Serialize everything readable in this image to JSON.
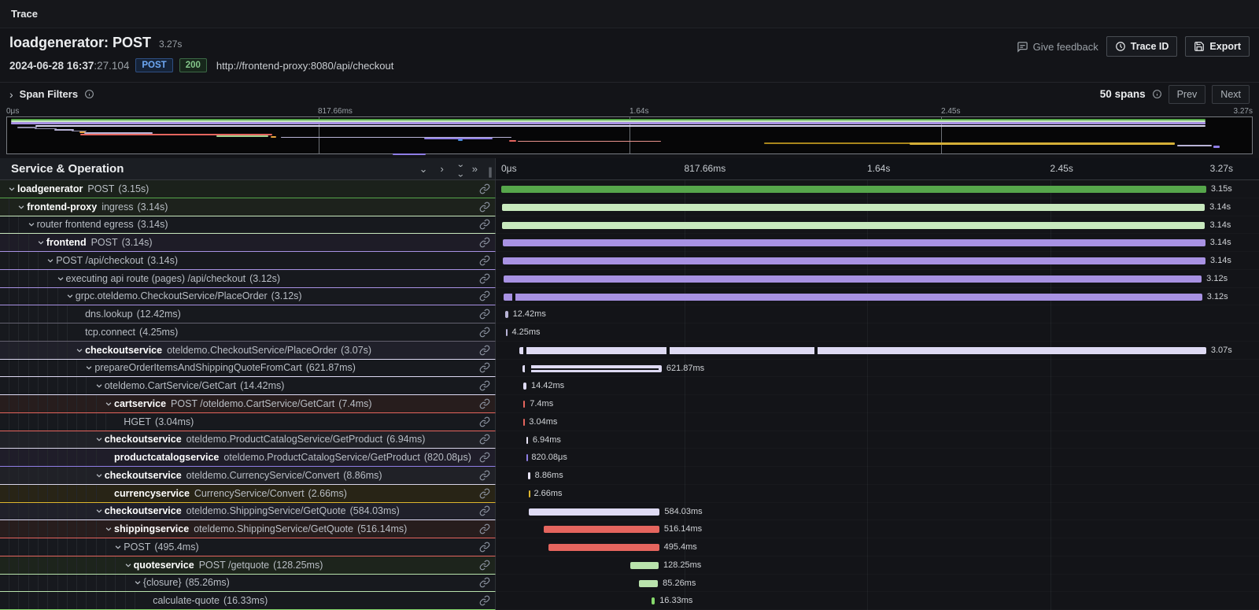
{
  "page": {
    "title": "Trace"
  },
  "trace_header": {
    "title": "loadgenerator: POST",
    "total_duration": "3.27s",
    "datetime": "2024-06-28 16:37",
    "datetime_frac": ":27.104",
    "method_badge": "POST",
    "status_badge": "200",
    "url": "http://frontend-proxy:8080/api/checkout",
    "feedback_label": "Give feedback",
    "trace_id_label": "Trace ID",
    "export_label": "Export"
  },
  "filters": {
    "label": "Span Filters",
    "span_count": "50 spans",
    "prev_label": "Prev",
    "next_label": "Next"
  },
  "timeline": {
    "header_title": "Service & Operation",
    "total_s": 3.27,
    "ticks": [
      "0μs",
      "817.66ms",
      "1.64s",
      "2.45s",
      "3.27s"
    ]
  },
  "colors": {
    "green": "#56A64B",
    "pale_green": "#C8E9BE",
    "purple": "#A892E3",
    "lavender": "#DEDAF3",
    "white_lavender": "#E9E5F7",
    "red": "#E5655E",
    "catalog_purple": "#8F7EE6",
    "gold": "#DDB52E",
    "quote_green": "#B9E3AC",
    "bright_green": "#86D96C",
    "dim_gray": "#62606E"
  },
  "minimap": {
    "grid_pcts": [
      25,
      50,
      75
    ],
    "bars": [
      {
        "l": 0.3,
        "t": 2,
        "w": 96,
        "h": 2,
        "c": "#56A64B"
      },
      {
        "l": 0.3,
        "t": 4,
        "w": 96,
        "h": 2,
        "c": "#C8E9BE"
      },
      {
        "l": 0.3,
        "t": 6,
        "w": 96,
        "h": 3,
        "c": "#A892E3"
      },
      {
        "l": 2.3,
        "t": 10,
        "w": 94,
        "h": 2,
        "c": "#DEDAF3"
      },
      {
        "l": 0.8,
        "t": 12,
        "w": 1.6,
        "h": 1.5,
        "c": "#8d89a6"
      },
      {
        "l": 2.2,
        "t": 13.5,
        "w": 1.8,
        "h": 1.5,
        "c": "#8d89a6"
      },
      {
        "l": 3.8,
        "t": 15,
        "w": 1.6,
        "h": 1.5,
        "c": "#b8b3d6"
      },
      {
        "l": 5.2,
        "t": 16.5,
        "w": 1.2,
        "h": 1.5,
        "c": "#8d89a6"
      },
      {
        "l": 5.8,
        "t": 18,
        "w": 0.5,
        "h": 2,
        "c": "#e8a33d"
      },
      {
        "l": 6.2,
        "t": 19,
        "w": 5.5,
        "h": 1.5,
        "c": "#b8b3d6"
      },
      {
        "l": 5.9,
        "t": 21,
        "w": 15.4,
        "h": 2,
        "c": "#E5655E"
      },
      {
        "l": 16.8,
        "t": 22.5,
        "w": 4.2,
        "h": 2,
        "c": "#9fd18f"
      },
      {
        "l": 21.2,
        "t": 23.5,
        "w": 0.4,
        "h": 2,
        "c": "#e8a33d"
      },
      {
        "l": 22,
        "t": 24.5,
        "w": 18.5,
        "h": 1.5,
        "c": "#b8b3d6"
      },
      {
        "l": 33.5,
        "t": 25.5,
        "w": 5.5,
        "h": 2,
        "c": "#8F7EE6"
      },
      {
        "l": 36.2,
        "t": 27.5,
        "w": 0.4,
        "h": 2,
        "c": "#4a90e2"
      },
      {
        "l": 40.3,
        "t": 28.5,
        "w": 0.6,
        "h": 2,
        "c": "#E5655E"
      },
      {
        "l": 41,
        "t": 29.5,
        "w": 11.5,
        "h": 1.5,
        "c": "#e8928c"
      },
      {
        "l": 60.8,
        "t": 31.5,
        "w": 12,
        "h": 2.5,
        "c": "#a8851c"
      },
      {
        "l": 72.5,
        "t": 31.5,
        "w": 21.3,
        "h": 3,
        "c": "#D4AF37"
      },
      {
        "l": 31,
        "t": 45.5,
        "w": 2.6,
        "h": 2,
        "c": "#8F7EE6"
      },
      {
        "l": 94,
        "t": 35,
        "w": 2.8,
        "h": 1.5,
        "c": "#b8b3d6"
      },
      {
        "l": 96.9,
        "t": 36,
        "w": 0.5,
        "h": 2.5,
        "c": "#8F7EE6"
      }
    ]
  },
  "rows": [
    {
      "indent": 0,
      "chevron": true,
      "service": "loadgenerator",
      "operation": "POST",
      "duration": "(3.15s)",
      "color": "#56A64B",
      "bar_color": "#56A64B",
      "tint": "#1b211b",
      "bar": {
        "start": 0.0,
        "dur": 3.15,
        "label": "3.15s"
      }
    },
    {
      "indent": 1,
      "chevron": true,
      "service": "frontend-proxy",
      "operation": "ingress",
      "duration": "(3.14s)",
      "color": "#C8E9BE",
      "bar_color": "#C8E9BE",
      "tint": "#1d221c",
      "bar": {
        "start": 0.004,
        "dur": 3.14,
        "label": "3.14s"
      }
    },
    {
      "indent": 2,
      "chevron": true,
      "service": null,
      "operation": "router frontend egress",
      "duration": "(3.14s)",
      "color": "#C8E9BE",
      "bar_color": "#C8E9BE",
      "tint": "#17191e",
      "bar": {
        "start": 0.005,
        "dur": 3.14,
        "label": "3.14s"
      }
    },
    {
      "indent": 3,
      "chevron": true,
      "service": "frontend",
      "operation": "POST",
      "duration": "(3.14s)",
      "color": "#A892E3",
      "bar_color": "#A892E3",
      "tint": "#1e1c27",
      "bar": {
        "start": 0.006,
        "dur": 3.14,
        "label": "3.14s"
      }
    },
    {
      "indent": 4,
      "chevron": true,
      "service": null,
      "operation": "POST /api/checkout",
      "duration": "(3.14s)",
      "color": "#A892E3",
      "bar_color": "#A892E3",
      "tint": "#17191e",
      "bar": {
        "start": 0.007,
        "dur": 3.14,
        "label": "3.14s"
      }
    },
    {
      "indent": 5,
      "chevron": true,
      "service": null,
      "operation": "executing api route (pages) /api/checkout",
      "duration": "(3.12s)",
      "color": "#A892E3",
      "bar_color": "#A892E3",
      "tint": "#17191e",
      "bar": {
        "start": 0.01,
        "dur": 3.12,
        "label": "3.12s"
      }
    },
    {
      "indent": 6,
      "chevron": true,
      "service": null,
      "operation": "grpc.oteldemo.CheckoutService/PlaceOrder",
      "duration": "(3.12s)",
      "color": "#A892E3",
      "bar_color": "#A892E3",
      "tint": "#17191e",
      "bar": {
        "start": 0.012,
        "dur": 3.12,
        "label": "3.12s",
        "marks": [
          0.05
        ]
      }
    },
    {
      "indent": 7,
      "chevron": false,
      "service": null,
      "operation": "dns.lookup",
      "duration": "(12.42ms)",
      "color": "#62606E",
      "bar_color": "#B8B3D6",
      "tint": "#17191e",
      "bar": {
        "start": 0.018,
        "dur": 0.01242,
        "label": "12.42ms"
      }
    },
    {
      "indent": 7,
      "chevron": false,
      "service": null,
      "operation": "tcp.connect",
      "duration": "(4.25ms)",
      "color": "#62606E",
      "bar_color": "#B8B3D6",
      "tint": "#17191e",
      "bar": {
        "start": 0.022,
        "dur": 0.00425,
        "label": "4.25ms"
      }
    },
    {
      "indent": 7,
      "chevron": true,
      "service": "checkoutservice",
      "operation": "oteldemo.CheckoutService/PlaceOrder",
      "duration": "(3.07s)",
      "color": "#DEDAF3",
      "bar_color": "#DEDAF3",
      "tint": "#20202a",
      "bar": {
        "start": 0.08,
        "dur": 3.07,
        "label": "3.07s",
        "marks": [
          0.1,
          0.74,
          1.4
        ]
      }
    },
    {
      "indent": 8,
      "chevron": true,
      "service": null,
      "operation": "prepareOrderItemsAndShippingQuoteFromCart",
      "duration": "(621.87ms)",
      "color": "#DEDAF3",
      "bar_color": "#DEDAF3",
      "tint": "#17191e",
      "bar": {
        "start": 0.095,
        "dur": 0.62187,
        "label": "621.87ms",
        "inner": true,
        "marks": [
          0.105,
          0.118
        ]
      }
    },
    {
      "indent": 9,
      "chevron": true,
      "service": null,
      "operation": "oteldemo.CartService/GetCart",
      "duration": "(14.42ms)",
      "color": "#DEDAF3",
      "bar_color": "#DEDAF3",
      "tint": "#17191e",
      "bar": {
        "start": 0.098,
        "dur": 0.01442,
        "label": "14.42ms"
      }
    },
    {
      "indent": 10,
      "chevron": true,
      "service": "cartservice",
      "operation": "POST /oteldemo.CartService/GetCart",
      "duration": "(7.4ms)",
      "color": "#E5655E",
      "bar_color": "#E5655E",
      "tint": "#271d1d",
      "bar": {
        "start": 0.099,
        "dur": 0.0074,
        "label": "7.4ms"
      }
    },
    {
      "indent": 11,
      "chevron": false,
      "service": null,
      "operation": "HGET",
      "duration": "(3.04ms)",
      "color": "#E5655E",
      "bar_color": "#E5655E",
      "tint": "#17191e",
      "bar": {
        "start": 0.1,
        "dur": 0.00304,
        "label": "3.04ms"
      }
    },
    {
      "indent": 9,
      "chevron": true,
      "service": "checkoutservice",
      "operation": "oteldemo.ProductCatalogService/GetProduct",
      "duration": "(6.94ms)",
      "color": "#D8D4E8",
      "bar_color": "#E9E5F7",
      "tint": "#202127",
      "bar": {
        "start": 0.112,
        "dur": 0.00694,
        "label": "6.94ms"
      }
    },
    {
      "indent": 10,
      "chevron": false,
      "service": "productcatalogservice",
      "operation": "oteldemo.ProductCatalogService/GetProduct",
      "duration": "(820.08μs)",
      "color": "#8F7EE6",
      "bar_color": "#8F7EE6",
      "tint": "#1f1d29",
      "bar": {
        "start": 0.113,
        "dur": 0.00082,
        "label": "820.08μs"
      }
    },
    {
      "indent": 9,
      "chevron": true,
      "service": "checkoutservice",
      "operation": "oteldemo.CurrencyService/Convert",
      "duration": "(8.86ms)",
      "color": "#D8D4E8",
      "bar_color": "#E9E5F7",
      "tint": "#202127",
      "bar": {
        "start": 0.12,
        "dur": 0.00886,
        "label": "8.86ms"
      }
    },
    {
      "indent": 10,
      "chevron": false,
      "service": "currencyservice",
      "operation": "CurrencyService/Convert",
      "duration": "(2.66ms)",
      "color": "#DDB52E",
      "bar_color": "#DDB52E",
      "tint": "#282416",
      "bar": {
        "start": 0.122,
        "dur": 0.00266,
        "label": "2.66ms"
      }
    },
    {
      "indent": 9,
      "chevron": true,
      "service": "checkoutservice",
      "operation": "oteldemo.ShippingService/GetQuote",
      "duration": "(584.03ms)",
      "color": "#DEDAF3",
      "bar_color": "#DEDAF3",
      "tint": "#20202a",
      "bar": {
        "start": 0.124,
        "dur": 0.58403,
        "label": "584.03ms"
      }
    },
    {
      "indent": 10,
      "chevron": true,
      "service": "shippingservice",
      "operation": "oteldemo.ShippingService/GetQuote",
      "duration": "(516.14ms)",
      "color": "#E5655E",
      "bar_color": "#E5655E",
      "tint": "#271d1d",
      "bar": {
        "start": 0.19,
        "dur": 0.51614,
        "label": "516.14ms"
      }
    },
    {
      "indent": 11,
      "chevron": true,
      "service": null,
      "operation": "POST",
      "duration": "(495.4ms)",
      "color": "#E5655E",
      "bar_color": "#E5655E",
      "tint": "#17191e",
      "bar": {
        "start": 0.21,
        "dur": 0.4954,
        "label": "495.4ms"
      }
    },
    {
      "indent": 12,
      "chevron": true,
      "service": "quoteservice",
      "operation": "POST /getquote",
      "duration": "(128.25ms)",
      "color": "#B9E3AC",
      "bar_color": "#B9E3AC",
      "tint": "#1d241c",
      "bar": {
        "start": 0.575,
        "dur": 0.12825,
        "label": "128.25ms"
      }
    },
    {
      "indent": 13,
      "chevron": true,
      "service": null,
      "operation": "{closure}",
      "duration": "(85.26ms)",
      "color": "#B9E3AC",
      "bar_color": "#B9E3AC",
      "tint": "#17191e",
      "bar": {
        "start": 0.615,
        "dur": 0.08526,
        "label": "85.26ms"
      }
    },
    {
      "indent": 14,
      "chevron": false,
      "service": null,
      "operation": "calculate-quote",
      "duration": "(16.33ms)",
      "color": "#86D96C",
      "bar_color": "#86D96C",
      "tint": "#17191e",
      "bar": {
        "start": 0.67,
        "dur": 0.01633,
        "label": "16.33ms"
      }
    }
  ]
}
